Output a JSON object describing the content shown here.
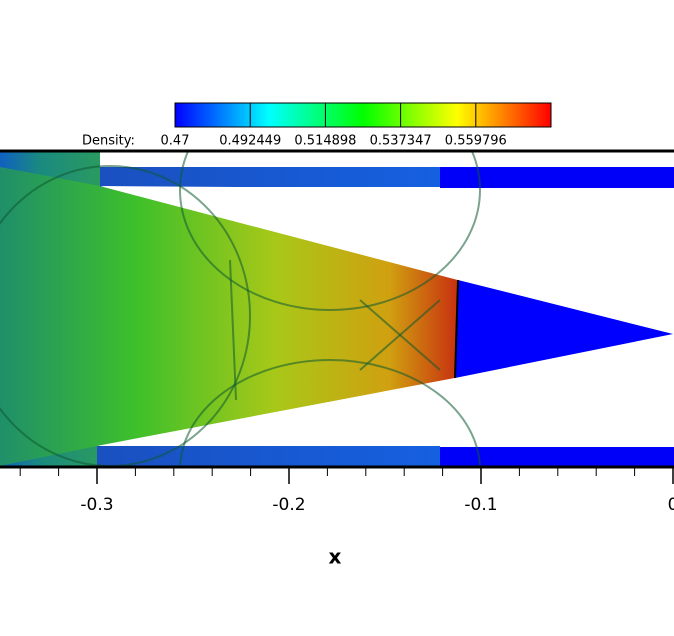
{
  "chart_data": {
    "type": "contour",
    "xlabel": "x",
    "xlim": [
      -0.35,
      0
    ],
    "xticks": [
      -0.3,
      -0.2,
      -0.1,
      0
    ],
    "minor_xticks": [
      -0.34,
      -0.32,
      -0.28,
      -0.26,
      -0.24,
      -0.22,
      -0.18,
      -0.16,
      -0.14,
      -0.12,
      -0.08,
      -0.06,
      -0.04,
      -0.02
    ],
    "colorbar": {
      "label": "Density:",
      "clim": [
        0.47,
        0.58224
      ],
      "ticks": [
        0.47,
        0.492449,
        0.514898,
        0.537347,
        0.559796
      ],
      "colors": [
        "#0000ff",
        "#00ffff",
        "#00ff00",
        "#ffff00",
        "#ff0000"
      ]
    }
  }
}
